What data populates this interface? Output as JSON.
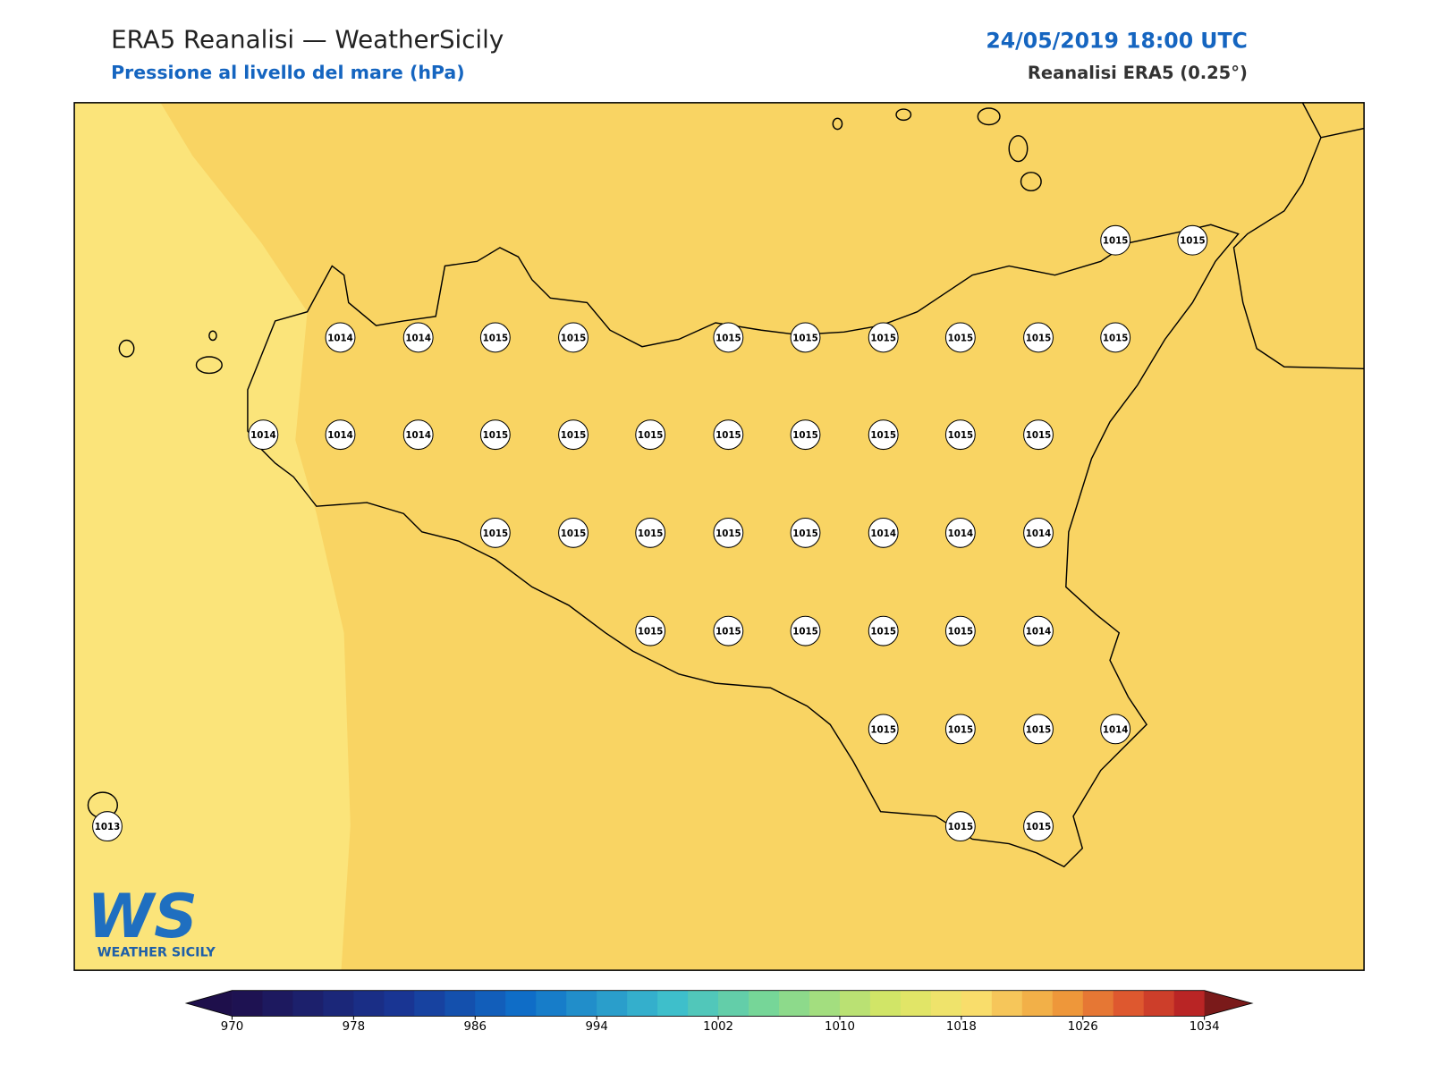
{
  "header": {
    "title": "ERA5 Reanalisi — WeatherSicily",
    "subtitle": "Pressione al livello del mare (hPa)",
    "date": "24/05/2019 18:00 UTC",
    "source": "Reanalisi ERA5 (0.25°)"
  },
  "stations": [
    1015,
    1015,
    1014,
    1014,
    1015,
    1015,
    1015,
    1015,
    1015,
    1015,
    1015,
    1015,
    1014,
    1014,
    1014,
    1015,
    1015,
    1015,
    1015,
    1015,
    1015,
    1015,
    1015,
    1015,
    1015,
    1015,
    1015,
    1015,
    1014,
    1014,
    1014,
    1015,
    1015,
    1015,
    1015,
    1015,
    1014,
    1015,
    1015,
    1015,
    1014,
    1013,
    1015,
    1015
  ],
  "colorbar": {
    "range": [
      970,
      1034
    ],
    "step": 2,
    "ticks": [
      970,
      978,
      986,
      994,
      1002,
      1010,
      1018,
      1026,
      1034
    ]
  },
  "logo": {
    "mark": "WS",
    "caption": "WEATHER SICILY"
  }
}
